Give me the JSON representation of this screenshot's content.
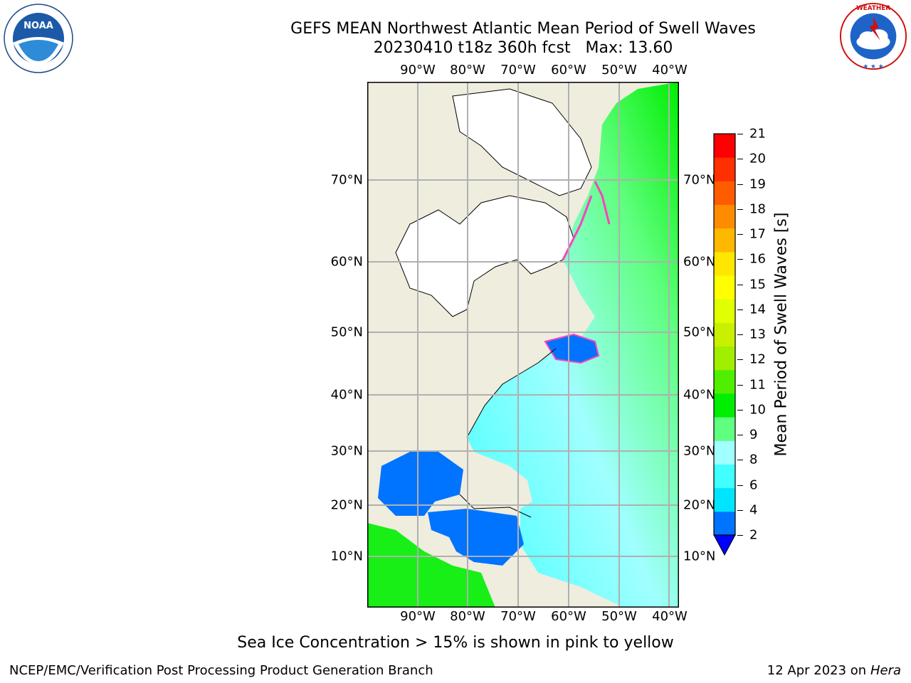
{
  "title": {
    "line1": "GEFS MEAN Northwest Atlantic Mean Period of Swell Waves",
    "line2": "20230410 t18z 360h fcst   Max: 13.60"
  },
  "logos": {
    "left": {
      "icon": "noaa-logo-icon",
      "text": "NOAA",
      "ring_text": "NATIONAL OCEANIC AND ATMOSPHERIC ADMINISTRATION · U.S. DEPARTMENT OF COMMERCE"
    },
    "right": {
      "icon": "nws-logo-icon",
      "ring_text": "NATIONAL WEATHER SERVICE"
    }
  },
  "map": {
    "longitude_labels": [
      "90°W",
      "80°W",
      "70°W",
      "60°W",
      "50°W",
      "40°W"
    ],
    "latitude_labels": [
      "70°N",
      "60°N",
      "50°N",
      "40°N",
      "30°N",
      "20°N",
      "10°N"
    ],
    "colors": {
      "land": "#efedde",
      "ice": "#ffffff",
      "grid": "#b0b0b0"
    }
  },
  "colorbar": {
    "label": "Mean Period of Swell Waves [s]",
    "ticks": [
      "21",
      "20",
      "19",
      "18",
      "17",
      "16",
      "15",
      "14",
      "13",
      "12",
      "11",
      "10",
      "9",
      "8",
      "6",
      "4",
      "2"
    ],
    "colors": [
      "#0000ff",
      "#0073ff",
      "#00e5ff",
      "#40ffff",
      "#a0ffff",
      "#60ff80",
      "#00ee00",
      "#50ee00",
      "#a0ee00",
      "#c8f000",
      "#e0ff00",
      "#ffff00",
      "#ffe600",
      "#ffb800",
      "#ff8c00",
      "#ff5c00",
      "#ff3000",
      "#ff0000"
    ]
  },
  "note": "Sea Ice Concentration > 15% is shown in pink to yellow",
  "footer": {
    "left": "NCEP/EMC/Verification Post Processing Product Generation Branch",
    "date": "12 Apr 2023 on ",
    "host": "Hera"
  }
}
